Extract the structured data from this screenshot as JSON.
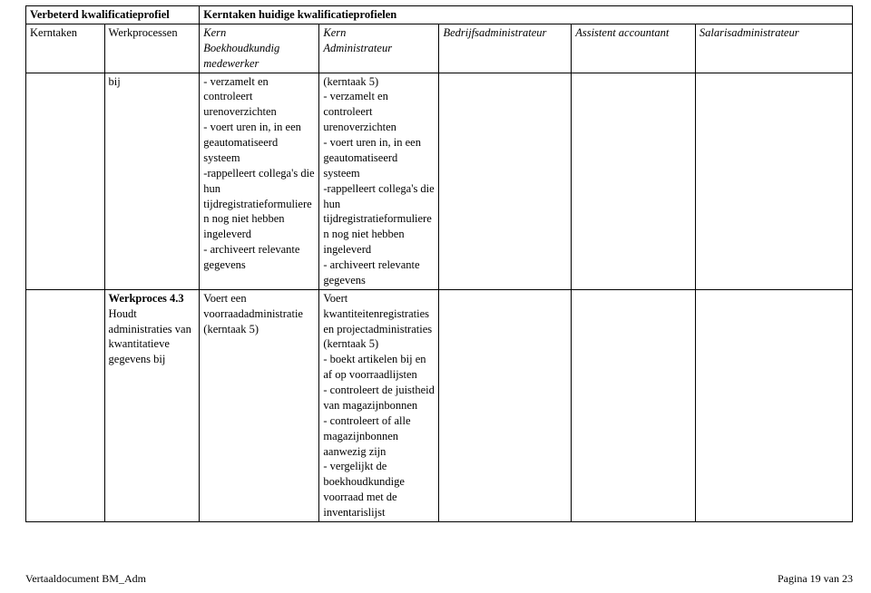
{
  "header": {
    "left_title": "Verbeterd kwalificatieprofiel",
    "right_title": "Kerntaken huidige kwalificatieprofielen"
  },
  "row2": {
    "kerntaken": "Kerntaken",
    "werkprocessen": "Werkprocessen",
    "col_c_1": "Kern",
    "col_c_2": "Boekhoudkundig",
    "col_c_3": "medewerker",
    "col_d_1": "Kern",
    "col_d_2": "Administrateur",
    "col_e": "Bedrijfsadministrateur",
    "col_f": "Assistent accountant",
    "col_g": "Salarisadministrateur"
  },
  "r3": {
    "col_b": "bij",
    "col_c": "- verzamelt en controleert urenoverzichten\n- voert uren in, in een geautomatiseerd systeem\n-rappelleert collega's die hun tijdregistratieformulieren nog niet hebben ingeleverd\n- archiveert relevante gegevens",
    "col_d": "(kerntaak 5)\n- verzamelt en controleert urenoverzichten\n- voert uren in, in een geautomatiseerd systeem\n-rappelleert collega's die hun tijdregistratieformulieren nog niet hebben ingeleverd\n- archiveert relevante gegevens"
  },
  "r4": {
    "col_b_bold": "Werkproces 4.3",
    "col_b_rest": "Houdt administraties van kwantitatieve gegevens bij",
    "col_c": "Voert een voorraadadministratie (kerntaak 5)",
    "col_d": "Voert kwantiteitenregistraties en projectadministraties (kerntaak 5)\n- boekt artikelen bij en af op voorraadlijsten\n- controleert de juistheid van magazijnbonnen\n- controleert of alle magazijnbonnen aanwezig zijn\n- vergelijkt de boekhoudkundige voorraad met de inventarislijst"
  },
  "footer": {
    "left": "Vertaaldocument BM_Adm",
    "right": "Pagina 19 van 23"
  }
}
